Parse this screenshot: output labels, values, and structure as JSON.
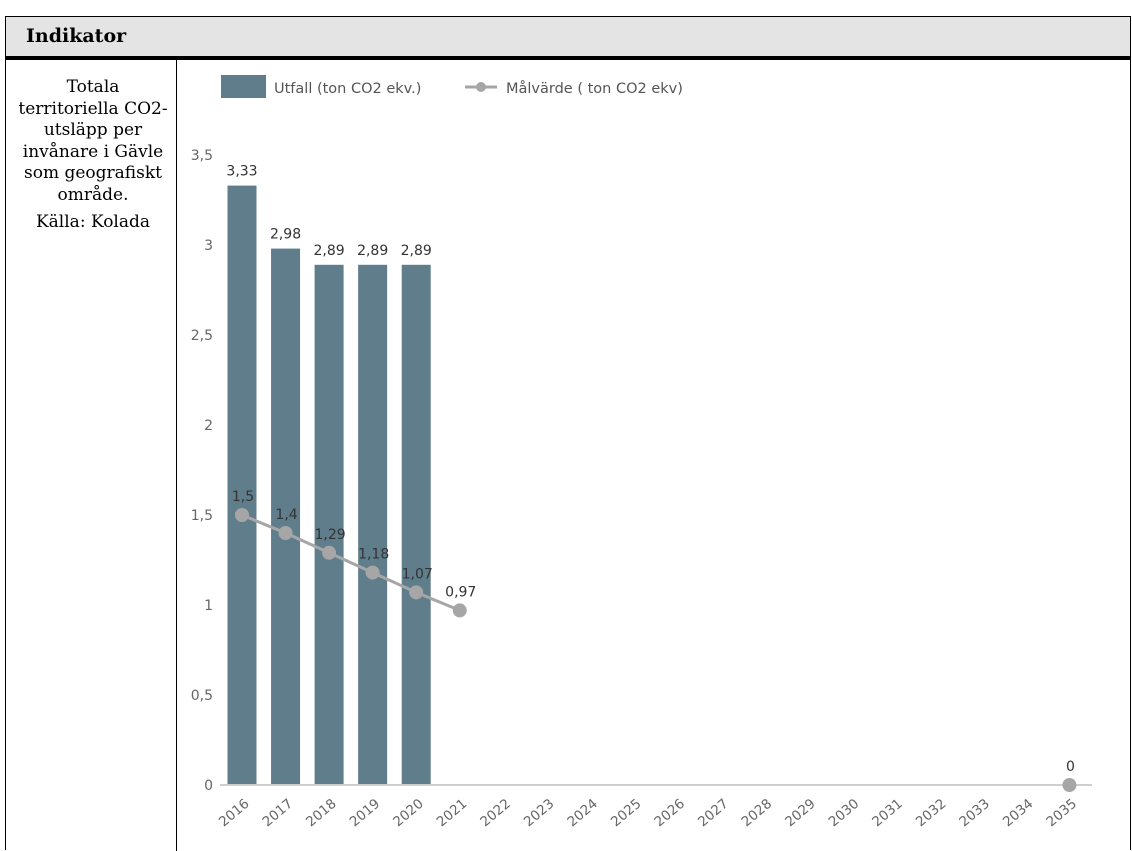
{
  "header": {
    "title": "Indikator"
  },
  "indicator": {
    "description": "Totala territoriella CO2-utsläpp per invånare i Gävle som geografiskt område.",
    "source": "Källa: Kolada"
  },
  "chart_data": {
    "type": "bar",
    "categories": [
      "2016",
      "2017",
      "2018",
      "2019",
      "2020",
      "2021",
      "2022",
      "2023",
      "2024",
      "2025",
      "2026",
      "2027",
      "2028",
      "2029",
      "2030",
      "2031",
      "2032",
      "2033",
      "2034",
      "2035"
    ],
    "series": [
      {
        "name": "Utfall (ton CO2 ekv.)",
        "type": "bar",
        "color": "#607d8b",
        "values": [
          3.33,
          2.98,
          2.89,
          2.89,
          2.89,
          null,
          null,
          null,
          null,
          null,
          null,
          null,
          null,
          null,
          null,
          null,
          null,
          null,
          null,
          null
        ],
        "labels": [
          "3,33",
          "2,98",
          "2,89",
          "2,89",
          "2,89"
        ]
      },
      {
        "name": "Målvärde ( ton CO2 ekv)",
        "type": "line",
        "color": "#a6a6a6",
        "values": [
          1.5,
          1.4,
          1.29,
          1.18,
          1.07,
          0.97,
          null,
          null,
          null,
          null,
          null,
          null,
          null,
          null,
          null,
          null,
          null,
          null,
          null,
          0
        ],
        "labels": [
          "1,5",
          "1,4",
          "1,29",
          "1,18",
          "1,07",
          "0,97",
          "",
          "",
          "",
          "",
          "",
          "",
          "",
          "",
          "",
          "",
          "",
          "",
          "",
          "0"
        ]
      }
    ],
    "yticks": [
      "0",
      "0,5",
      "1",
      "1,5",
      "2",
      "2,5",
      "3",
      "3,5"
    ],
    "ylim": [
      0,
      3.5
    ],
    "legend": "top-left",
    "grid": false
  }
}
